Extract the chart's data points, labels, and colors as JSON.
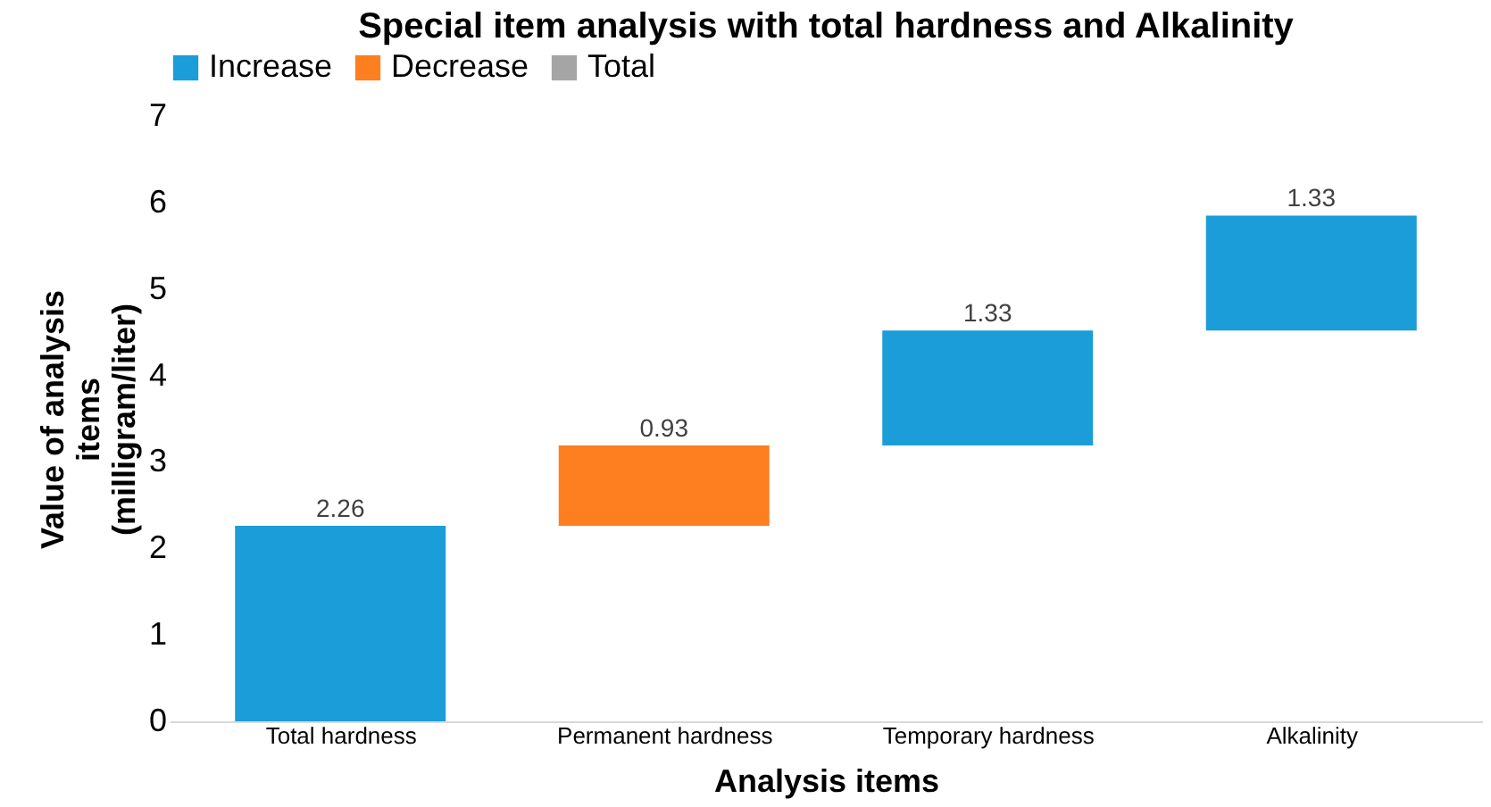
{
  "chart_data": {
    "type": "bar",
    "title": "Special item analysis with total hardness and Alkalinity",
    "xlabel": "Analysis items",
    "ylabel": "Value of analysis items (milligram/liter)",
    "categories": [
      "Total hardness",
      "Permanent hardness",
      "Temporary hardness",
      "Alkalinity"
    ],
    "series": [
      {
        "name": "Increase",
        "color": "#1b9dd9",
        "values": [
          2.26,
          null,
          1.33,
          1.33
        ],
        "base": [
          0,
          null,
          3.19,
          4.52
        ]
      },
      {
        "name": "Decrease",
        "color": "#fd7f20",
        "values": [
          null,
          0.93,
          null,
          null
        ],
        "base": [
          null,
          2.26,
          null,
          null
        ]
      },
      {
        "name": "Total",
        "color": "#a5a5a5",
        "values": [
          null,
          null,
          null,
          null
        ]
      }
    ],
    "ylim": [
      0,
      7
    ],
    "yticks": [
      0,
      1,
      2,
      3,
      4,
      5,
      6,
      7
    ],
    "grid": false,
    "legend": "top",
    "data_labels": true
  }
}
